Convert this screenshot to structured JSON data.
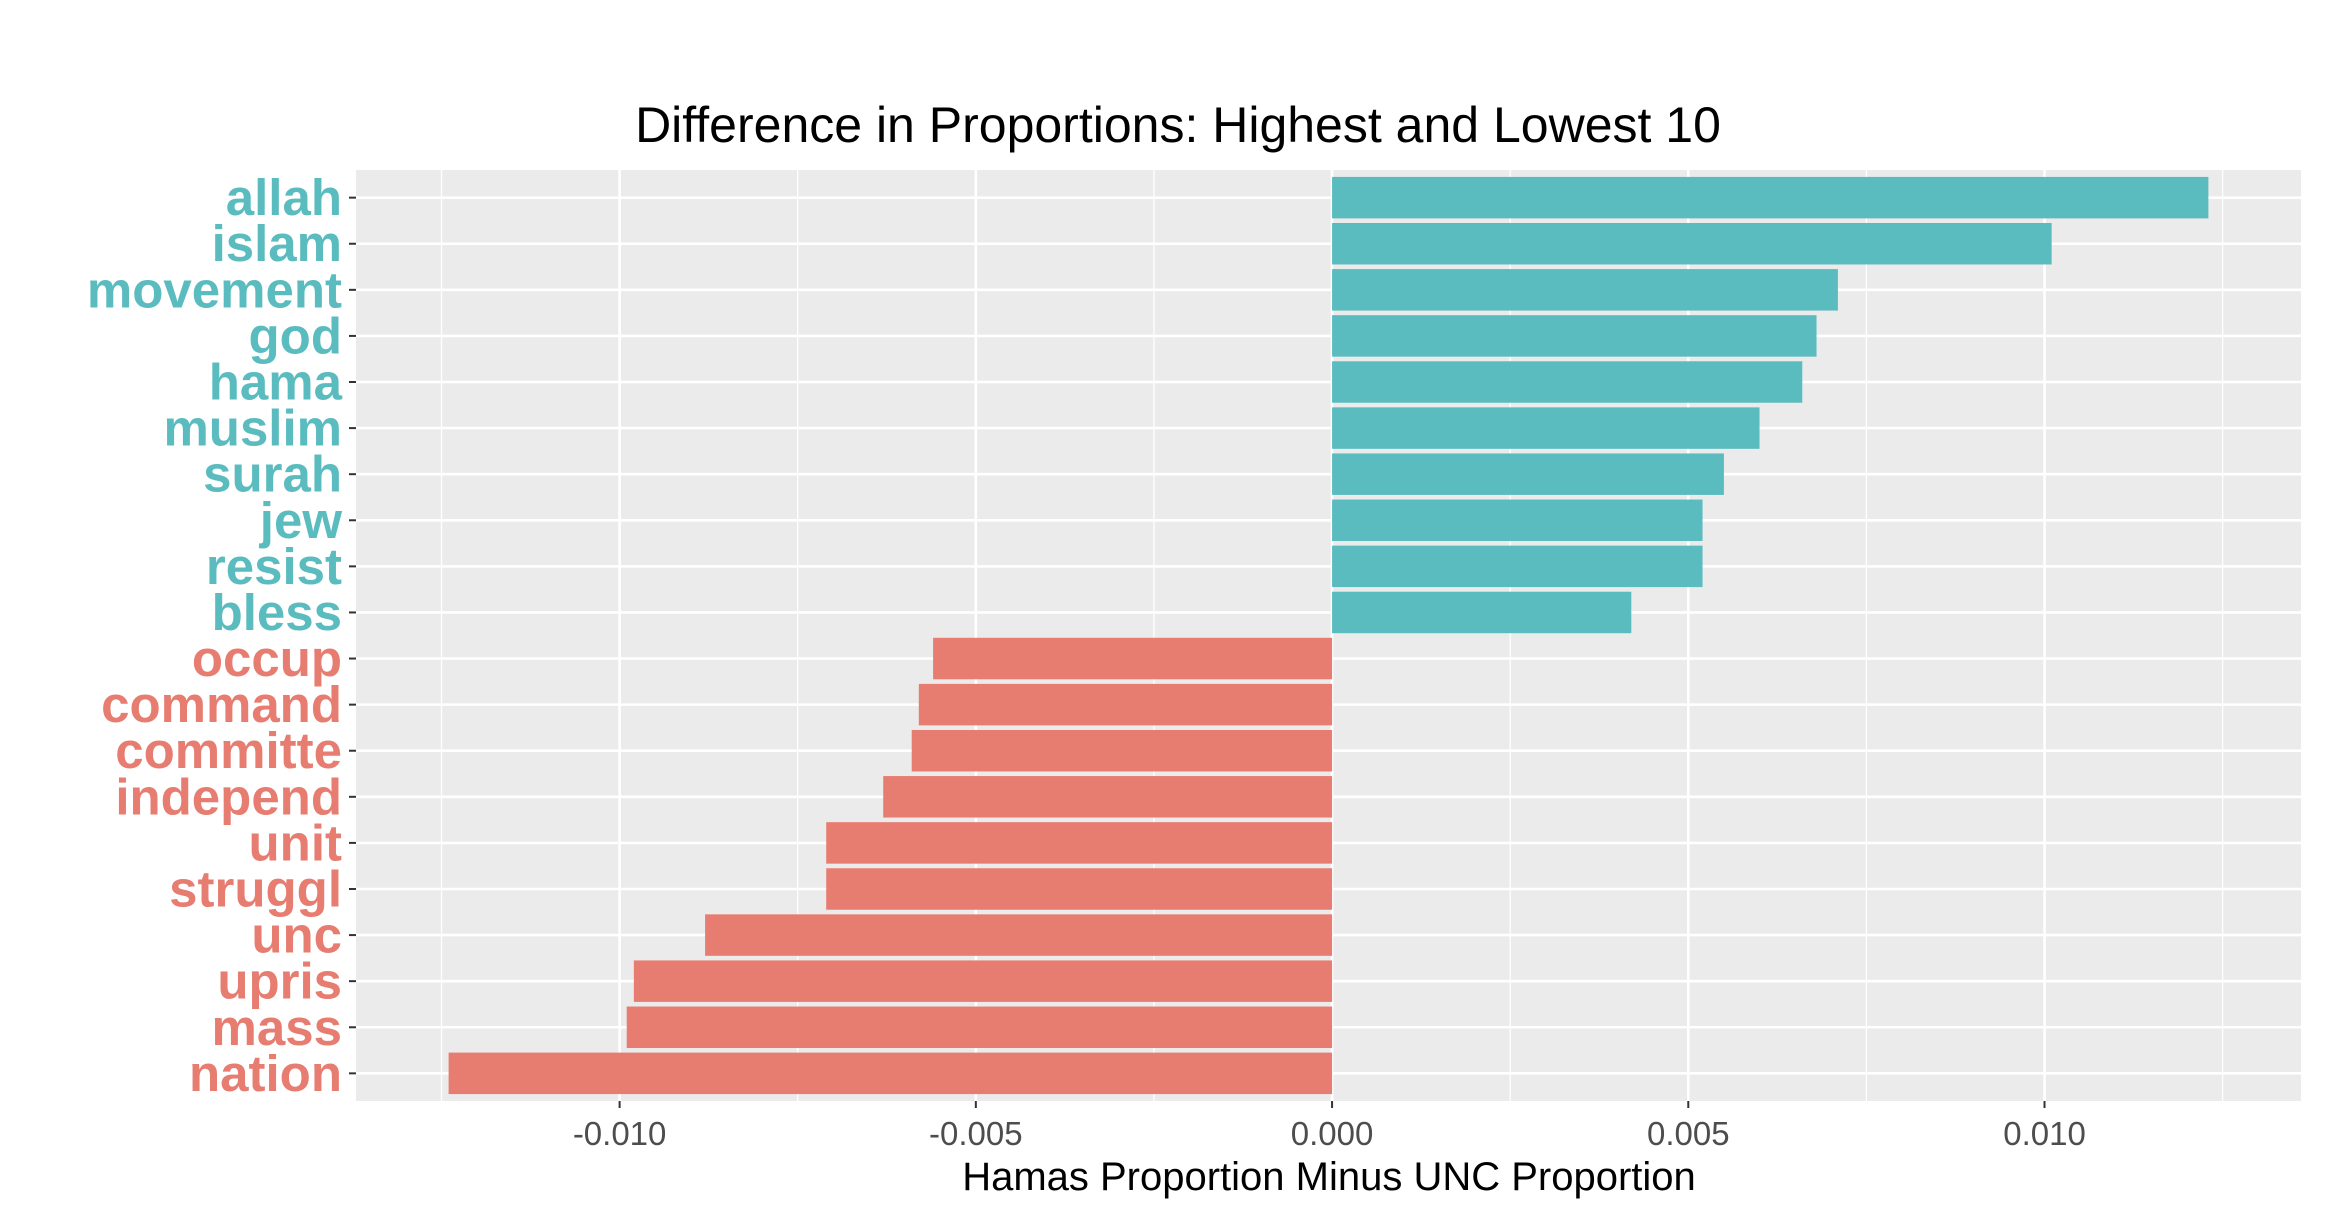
{
  "chart_data": {
    "type": "bar",
    "orientation": "horizontal",
    "title": "Difference in Proportions: Highest and Lowest 10",
    "xlabel": "Hamas Proportion Minus UNC Proportion",
    "ylabel": "",
    "xlim": [
      -0.0137,
      0.0136
    ],
    "x_ticks": [
      -0.01,
      -0.005,
      0.0,
      0.005,
      0.01
    ],
    "x_tick_labels": [
      "-0.010",
      "-0.005",
      "0.000",
      "0.005",
      "0.010"
    ],
    "grid": true,
    "legend": "none",
    "colors": {
      "positive": "#5bbcc0",
      "negative": "#e77c71",
      "panel": "#ebebeb",
      "grid": "#ffffff"
    },
    "categories": [
      "allah",
      "islam",
      "movement",
      "god",
      "hama",
      "muslim",
      "surah",
      "jew",
      "resist",
      "bless",
      "occup",
      "command",
      "committe",
      "independ",
      "unit",
      "struggl",
      "unc",
      "upris",
      "mass",
      "nation"
    ],
    "values": [
      0.0123,
      0.0101,
      0.0071,
      0.0068,
      0.0066,
      0.006,
      0.0055,
      0.0052,
      0.0052,
      0.0042,
      -0.0056,
      -0.0058,
      -0.0059,
      -0.0063,
      -0.0071,
      -0.0071,
      -0.0088,
      -0.0098,
      -0.0099,
      -0.0124
    ]
  }
}
